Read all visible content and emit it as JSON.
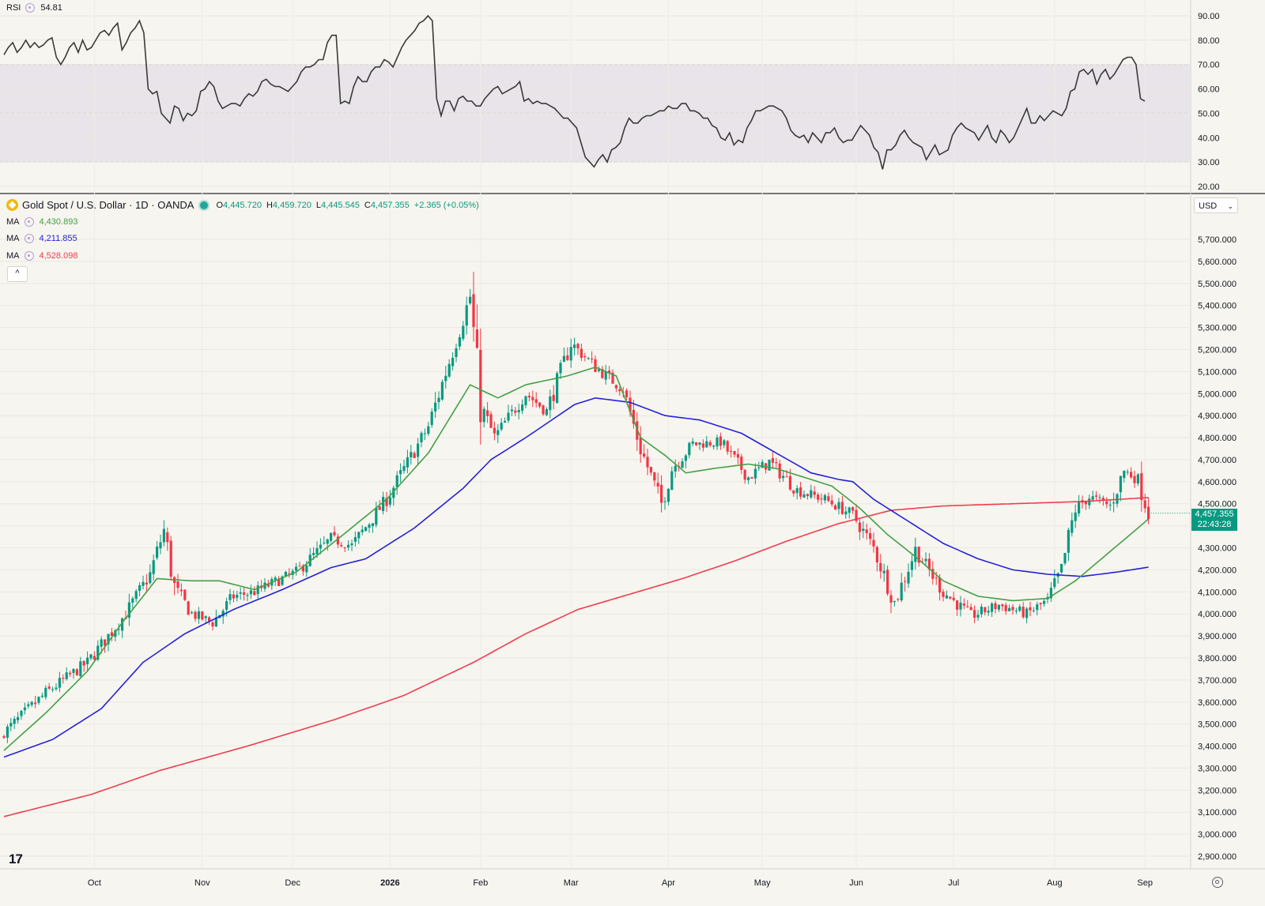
{
  "rsi_legend": {
    "label": "RSI",
    "value": "54.81"
  },
  "main_legend": {
    "symbol": "Gold Spot / U.S. Dollar · 1D · OANDA",
    "o_key": "O",
    "o": "4,445.720",
    "h_key": "H",
    "h": "4,459.720",
    "l_key": "L",
    "l": "4,445.545",
    "c_key": "C",
    "c": "4,457.355",
    "change": "+2.365 (+0.05%)"
  },
  "ma_legends": [
    {
      "label": "MA",
      "value": "4,430.893",
      "color": "#43a047"
    },
    {
      "label": "MA",
      "value": "4,211.855",
      "color": "#2323d8"
    },
    {
      "label": "MA",
      "value": "4,528.098",
      "color": "#ef3d4f"
    }
  ],
  "collapse_icon": "^",
  "currency": {
    "value": "USD",
    "chevron": "⌄"
  },
  "last_price": {
    "price": "4,457.355",
    "countdown": "22:43:28"
  },
  "logo_text": "17",
  "colors": {
    "up": "#089981",
    "down": "#f23645",
    "rsi_line": "#3a3a3a",
    "rsi_band": "#e8e4ea",
    "background": "#f7f5ef"
  },
  "chart_data": [
    {
      "type": "line",
      "title": "RSI",
      "ylim": [
        20,
        90
      ],
      "y_ticks": [
        "90.00",
        "80.00",
        "70.00",
        "60.00",
        "50.00",
        "40.00",
        "30.00",
        "20.00"
      ],
      "bands": [
        30,
        50,
        70
      ],
      "x_labels": [
        "Oct",
        "Nov",
        "Dec",
        "2026",
        "Feb",
        "Mar",
        "Apr",
        "May",
        "Jun",
        "Jul",
        "Aug",
        "Sep"
      ],
      "series": [
        {
          "name": "RSI",
          "values": [
            74,
            77,
            79,
            75,
            77,
            80,
            77,
            79,
            77,
            78,
            80,
            81,
            73,
            70,
            73,
            77,
            79,
            75,
            80,
            76,
            77,
            80,
            83,
            84,
            82,
            85,
            87,
            76,
            79,
            83,
            85,
            88,
            83,
            60,
            58,
            59,
            50,
            48,
            46,
            53,
            52,
            47,
            50,
            49,
            51,
            59,
            60,
            63,
            61,
            55,
            52,
            53,
            54,
            54,
            53,
            56,
            58,
            57,
            59,
            63,
            64,
            62,
            61,
            61,
            60,
            59,
            61,
            63,
            67,
            69,
            69,
            70,
            72,
            72,
            79,
            82,
            82,
            54,
            55,
            54,
            61,
            65,
            63,
            63,
            67,
            69,
            69,
            72,
            71,
            69,
            73,
            77,
            80,
            82,
            84,
            87,
            88,
            90,
            88,
            56,
            49,
            55,
            55,
            51,
            56,
            57,
            55,
            55,
            53,
            53,
            56,
            58,
            60,
            61,
            58,
            59,
            60,
            61,
            63,
            55,
            56,
            54,
            55,
            54,
            54,
            53,
            52,
            50,
            48,
            48,
            46,
            44,
            38,
            32,
            30,
            28,
            31,
            33,
            30,
            35,
            36,
            38,
            44,
            48,
            46,
            46,
            48,
            49,
            49,
            50,
            51,
            51,
            53,
            52,
            52,
            54,
            54,
            51,
            51,
            50,
            48,
            48,
            45,
            44,
            40,
            39,
            42,
            37,
            39,
            38,
            44,
            47,
            51,
            51,
            52,
            53,
            53,
            52,
            51,
            48,
            43,
            41,
            40,
            41,
            38,
            42,
            40,
            38,
            42,
            42,
            44,
            40,
            38,
            39,
            39,
            42,
            45,
            43,
            41,
            36,
            34,
            27,
            35,
            35,
            37,
            41,
            43,
            40,
            38,
            37,
            36,
            31,
            34,
            37,
            33,
            34,
            35,
            41,
            44,
            46,
            44,
            43,
            42,
            39,
            42,
            45,
            40,
            38,
            43,
            41,
            38,
            40,
            44,
            48,
            52,
            46,
            46,
            49,
            47,
            49,
            51,
            50,
            49,
            52,
            59,
            60,
            67,
            68,
            66,
            68,
            62,
            66,
            68,
            64,
            66,
            69,
            72,
            73,
            73,
            70,
            56,
            55
          ]
        }
      ]
    },
    {
      "type": "candlestick",
      "title": "Gold Spot / U.S. Dollar · 1D · OANDA",
      "ylim": [
        2900,
        5700
      ],
      "y_ticks": [
        "5,700.000",
        "5,600.000",
        "5,500.000",
        "5,400.000",
        "5,300.000",
        "5,200.000",
        "5,100.000",
        "5,000.000",
        "4,900.000",
        "4,800.000",
        "4,700.000",
        "4,600.000",
        "4,500.000",
        "4,400.000",
        "4,300.000",
        "4,200.000",
        "4,100.000",
        "4,000.000",
        "3,900.000",
        "3,800.000",
        "3,700.000",
        "3,600.000",
        "3,500.000",
        "3,400.000",
        "3,300.000",
        "3,200.000",
        "3,100.000",
        "3,000.000",
        "2,900.000"
      ],
      "x_labels": [
        "Oct",
        "Nov",
        "Dec",
        "2026",
        "Feb",
        "Mar",
        "Apr",
        "May",
        "Jun",
        "Jul",
        "Aug",
        "Sep"
      ],
      "close_anchors": [
        [
          0,
          3460
        ],
        [
          12,
          3640
        ],
        [
          24,
          3780
        ],
        [
          35,
          4000
        ],
        [
          42,
          4180
        ],
        [
          46,
          4380
        ],
        [
          49,
          4120
        ],
        [
          54,
          4000
        ],
        [
          60,
          3960
        ],
        [
          66,
          4080
        ],
        [
          72,
          4100
        ],
        [
          84,
          4190
        ],
        [
          94,
          4340
        ],
        [
          100,
          4310
        ],
        [
          110,
          4520
        ],
        [
          122,
          4850
        ],
        [
          134,
          5440
        ],
        [
          137,
          4950
        ],
        [
          141,
          4800
        ],
        [
          150,
          5000
        ],
        [
          156,
          4920
        ],
        [
          163,
          5230
        ],
        [
          170,
          5120
        ],
        [
          178,
          5020
        ],
        [
          183,
          4750
        ],
        [
          189,
          4500
        ],
        [
          192,
          4660
        ],
        [
          198,
          4770
        ],
        [
          206,
          4780
        ],
        [
          214,
          4620
        ],
        [
          220,
          4690
        ],
        [
          228,
          4560
        ],
        [
          236,
          4520
        ],
        [
          244,
          4450
        ],
        [
          250,
          4300
        ],
        [
          256,
          4050
        ],
        [
          262,
          4290
        ],
        [
          270,
          4100
        ],
        [
          278,
          3990
        ],
        [
          286,
          4040
        ],
        [
          294,
          4000
        ],
        [
          300,
          4060
        ],
        [
          304,
          4200
        ],
        [
          308,
          4480
        ],
        [
          312,
          4530
        ],
        [
          318,
          4490
        ],
        [
          322,
          4650
        ],
        [
          326,
          4610
        ],
        [
          329,
          4457
        ]
      ],
      "ma_fast_anchors": [
        [
          0,
          3380
        ],
        [
          12,
          3550
        ],
        [
          24,
          3740
        ],
        [
          34,
          3960
        ],
        [
          44,
          4160
        ],
        [
          54,
          4150
        ],
        [
          62,
          4150
        ],
        [
          72,
          4110
        ],
        [
          84,
          4190
        ],
        [
          96,
          4340
        ],
        [
          110,
          4520
        ],
        [
          122,
          4730
        ],
        [
          134,
          5040
        ],
        [
          142,
          4980
        ],
        [
          150,
          5040
        ],
        [
          162,
          5080
        ],
        [
          170,
          5120
        ],
        [
          176,
          5080
        ],
        [
          183,
          4800
        ],
        [
          190,
          4720
        ],
        [
          196,
          4640
        ],
        [
          204,
          4660
        ],
        [
          214,
          4680
        ],
        [
          222,
          4660
        ],
        [
          230,
          4620
        ],
        [
          238,
          4580
        ],
        [
          246,
          4480
        ],
        [
          254,
          4360
        ],
        [
          262,
          4260
        ],
        [
          270,
          4150
        ],
        [
          280,
          4080
        ],
        [
          290,
          4060
        ],
        [
          300,
          4070
        ],
        [
          308,
          4150
        ],
        [
          314,
          4230
        ],
        [
          320,
          4310
        ],
        [
          326,
          4390
        ],
        [
          329,
          4431
        ]
      ],
      "ma_mid_anchors": [
        [
          0,
          3350
        ],
        [
          14,
          3430
        ],
        [
          28,
          3570
        ],
        [
          40,
          3780
        ],
        [
          52,
          3910
        ],
        [
          66,
          4020
        ],
        [
          80,
          4110
        ],
        [
          94,
          4210
        ],
        [
          104,
          4250
        ],
        [
          118,
          4390
        ],
        [
          132,
          4570
        ],
        [
          140,
          4700
        ],
        [
          150,
          4800
        ],
        [
          164,
          4950
        ],
        [
          170,
          4980
        ],
        [
          180,
          4960
        ],
        [
          190,
          4900
        ],
        [
          200,
          4880
        ],
        [
          212,
          4820
        ],
        [
          222,
          4730
        ],
        [
          232,
          4640
        ],
        [
          240,
          4610
        ],
        [
          244,
          4600
        ],
        [
          250,
          4520
        ],
        [
          260,
          4420
        ],
        [
          270,
          4320
        ],
        [
          280,
          4250
        ],
        [
          290,
          4200
        ],
        [
          300,
          4180
        ],
        [
          310,
          4170
        ],
        [
          320,
          4190
        ],
        [
          329,
          4212
        ]
      ],
      "ma_slow_anchors": [
        [
          0,
          3080
        ],
        [
          25,
          3180
        ],
        [
          45,
          3290
        ],
        [
          70,
          3400
        ],
        [
          95,
          3520
        ],
        [
          115,
          3630
        ],
        [
          135,
          3780
        ],
        [
          150,
          3910
        ],
        [
          165,
          4020
        ],
        [
          180,
          4090
        ],
        [
          195,
          4160
        ],
        [
          210,
          4240
        ],
        [
          225,
          4330
        ],
        [
          240,
          4410
        ],
        [
          255,
          4470
        ],
        [
          270,
          4490
        ],
        [
          290,
          4500
        ],
        [
          310,
          4510
        ],
        [
          329,
          4528
        ]
      ]
    }
  ]
}
